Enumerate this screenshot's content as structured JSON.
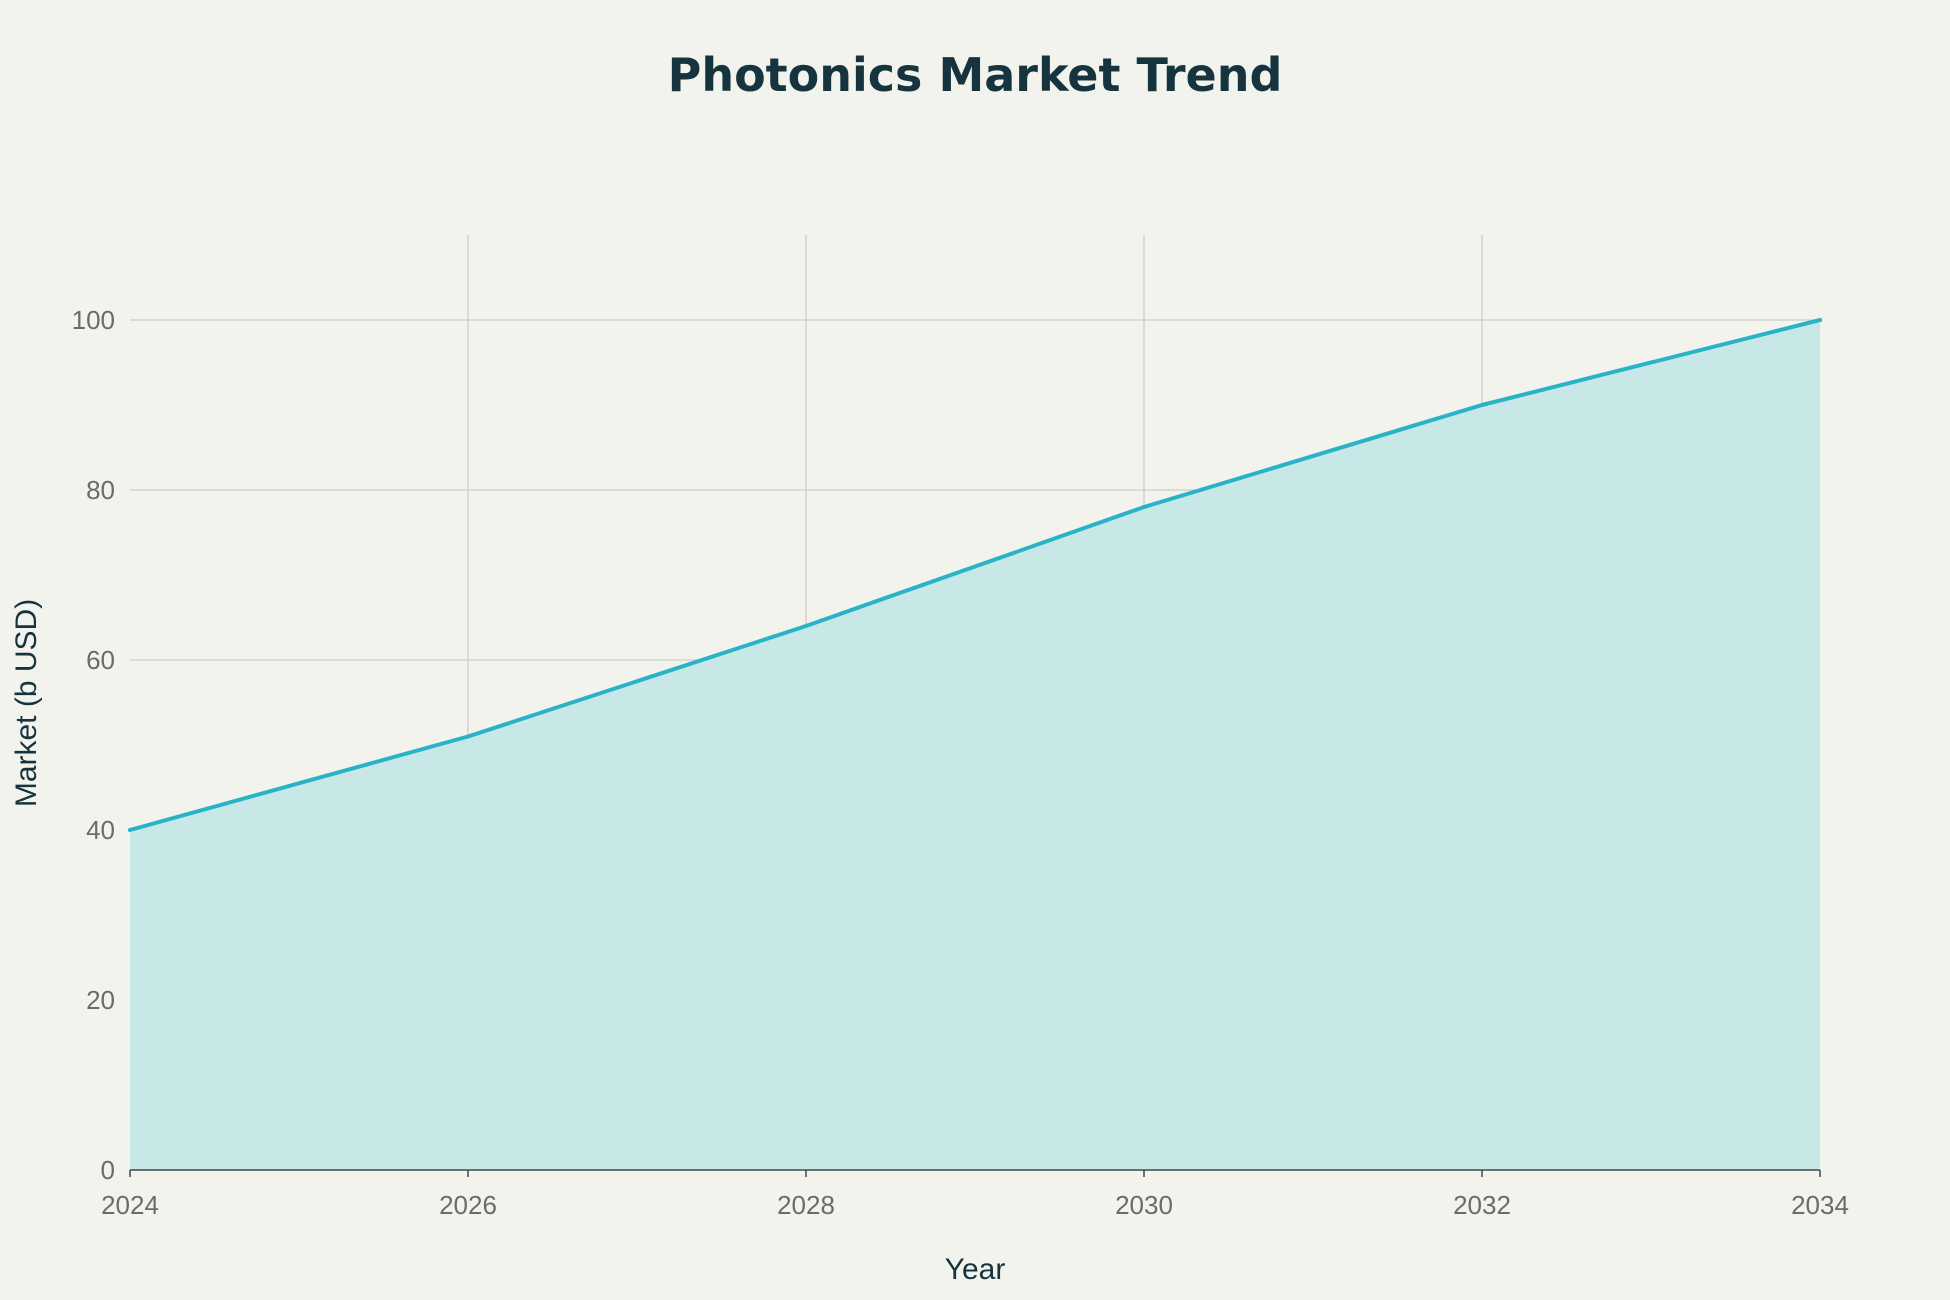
{
  "chart_data": {
    "type": "area",
    "title": "Photonics Market Trend",
    "xlabel": "Year",
    "ylabel": "Market (b USD)",
    "x": [
      2024,
      2026,
      2028,
      2030,
      2032,
      2034
    ],
    "series": [
      {
        "values": [
          40,
          51,
          64,
          78,
          90,
          100
        ]
      }
    ],
    "xlim": [
      2024,
      2034
    ],
    "ylim": [
      0,
      110
    ],
    "x_ticks": [
      2024,
      2026,
      2028,
      2030,
      2032,
      2034
    ],
    "y_ticks": [
      0,
      20,
      40,
      60,
      80,
      100
    ],
    "grid": true,
    "colors": {
      "line": "#2ab3c6",
      "fill": "#c8e8e8",
      "background": "#f3f3ee",
      "title": "#16343e"
    }
  }
}
